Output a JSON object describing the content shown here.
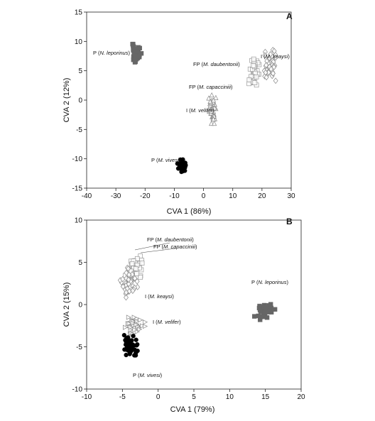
{
  "chart_data": [
    {
      "panel": "A",
      "type": "scatter",
      "xlabel": "CVA 1 (86%)",
      "ylabel": "CVA 2 (12%)",
      "xlim": [
        -40,
        30
      ],
      "ylim": [
        -15,
        15
      ],
      "xticks": [
        -40,
        -30,
        -20,
        -10,
        0,
        10,
        20,
        30
      ],
      "yticks": [
        -15,
        -10,
        -5,
        0,
        5,
        10,
        15
      ],
      "grid": false,
      "series": [
        {
          "label_prefix": "P",
          "species": "N. leporinus",
          "marker": "filled-square",
          "color": "#666666",
          "center": [
            -23,
            8.0
          ],
          "spread": [
            1.7,
            1.4
          ],
          "n": 40
        },
        {
          "label_prefix": "FP",
          "species": "M. daubentonii",
          "marker": "open-square",
          "color": "#999999",
          "center": [
            17.5,
            5.3
          ],
          "spread": [
            1.4,
            1.8
          ],
          "n": 30
        },
        {
          "label_prefix": "FP",
          "species": "M. capacciniii",
          "marker": "open-square",
          "color": "#999999",
          "center": [
            16.8,
            3.2
          ],
          "spread": [
            1.2,
            1.3
          ],
          "n": 15
        },
        {
          "label_prefix": "I",
          "species": "M. keaysi",
          "marker": "open-diamond",
          "color": "#888888",
          "center": [
            22.5,
            5.8
          ],
          "spread": [
            2.0,
            2.5
          ],
          "n": 40
        },
        {
          "label_prefix": "I",
          "species": "M. velifer",
          "marker": "open-triangle-up",
          "color": "#888888",
          "center": [
            3.0,
            -1.6
          ],
          "spread": [
            1.1,
            2.2
          ],
          "n": 45
        },
        {
          "label_prefix": "P",
          "species": "M. vivesi",
          "marker": "filled-circle",
          "color": "#000000",
          "center": [
            -7.5,
            -11.2
          ],
          "spread": [
            1.3,
            1.0
          ],
          "n": 45
        }
      ],
      "annotations": [
        {
          "prefix": "P (",
          "species": "N. leporinus",
          "suffix": ")"
        },
        {
          "prefix": "FP (",
          "species": "M. daubentonii",
          "suffix": ")"
        },
        {
          "prefix": "I (",
          "species": "M. keaysi",
          "suffix": ")"
        },
        {
          "prefix": "FP (",
          "species": "M. capacciniii",
          "suffix": ")"
        },
        {
          "prefix": "I (",
          "species": "M. velifer",
          "suffix": ")"
        },
        {
          "prefix": "P (",
          "species": "M. vivesi",
          "suffix": ")"
        }
      ]
    },
    {
      "panel": "B",
      "type": "scatter",
      "xlabel": "CVA 1 (79%)",
      "ylabel": "CVA 2 (15%)",
      "xlim": [
        -10,
        20
      ],
      "ylim": [
        -10,
        10
      ],
      "xticks": [
        -10,
        -5,
        0,
        5,
        10,
        15,
        20
      ],
      "yticks": [
        -10,
        -5,
        0,
        5,
        10
      ],
      "grid": false,
      "series": [
        {
          "label_prefix": "FP",
          "species": "M. daubentonii",
          "marker": "open-square",
          "color": "#999999",
          "center": [
            -3.2,
            4.6
          ],
          "spread": [
            1.1,
            1.4
          ],
          "n": 30
        },
        {
          "label_prefix": "FP",
          "species": "M. capacciniii",
          "marker": "open-square",
          "color": "#999999",
          "center": [
            -3.6,
            3.6
          ],
          "spread": [
            0.9,
            1.0
          ],
          "n": 15
        },
        {
          "label_prefix": "I",
          "species": "M. keaysi",
          "marker": "open-diamond",
          "color": "#888888",
          "center": [
            -4.2,
            2.6
          ],
          "spread": [
            1.2,
            1.6
          ],
          "n": 40
        },
        {
          "label_prefix": "I",
          "species": "M. velifer",
          "marker": "open-triangle-right",
          "color": "#888888",
          "center": [
            -3.3,
            -2.5
          ],
          "spread": [
            1.3,
            0.9
          ],
          "n": 40
        },
        {
          "label_prefix": "P",
          "species": "M. vivesi",
          "marker": "filled-circle",
          "color": "#000000",
          "center": [
            -3.8,
            -4.8
          ],
          "spread": [
            1.0,
            1.1
          ],
          "n": 50
        },
        {
          "label_prefix": "P",
          "species": "N. leporinus",
          "marker": "filled-square",
          "color": "#666666",
          "center": [
            15.0,
            -0.7
          ],
          "spread": [
            1.4,
            1.0
          ],
          "n": 35
        }
      ],
      "annotations": [
        {
          "prefix": "FP (",
          "species": "M. daubentonii",
          "suffix": ")"
        },
        {
          "prefix": "FP (",
          "species": "M. capacciniii",
          "suffix": ")"
        },
        {
          "prefix": "I (",
          "species": "M. keaysi",
          "suffix": ")"
        },
        {
          "prefix": "I (",
          "species": "M. velifer",
          "suffix": ")"
        },
        {
          "prefix": "P (",
          "species": "N. leporinus",
          "suffix": ")"
        },
        {
          "prefix": "P (",
          "species": "M. vivesi",
          "suffix": ")"
        }
      ]
    }
  ]
}
